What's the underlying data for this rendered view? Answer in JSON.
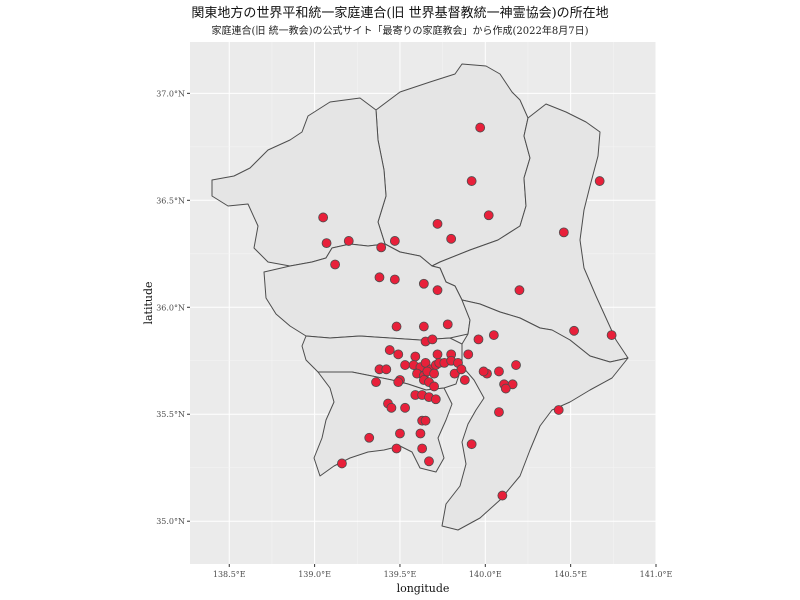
{
  "title": "関東地方の世界平和統一家庭連合(旧 世界基督教統一神霊協会)の所在地",
  "subtitle": "家庭連合(旧 統一教会)の公式サイト「最寄りの家庭教会」から作成(2022年8月7日)",
  "chart_data": {
    "type": "scatter",
    "xlabel": "longitude",
    "ylabel": "latitude",
    "xlim": [
      138.27,
      141.0
    ],
    "ylim": [
      34.8,
      37.24
    ],
    "x_ticks": [
      "138.5°E",
      "139.0°E",
      "139.5°E",
      "140.0°E",
      "140.5°E",
      "141.0°E"
    ],
    "y_ticks": [
      "35.0°N",
      "35.5°N",
      "36.0°N",
      "36.5°N",
      "37.0°N"
    ],
    "x_tick_values": [
      138.5,
      139.0,
      139.5,
      140.0,
      140.5,
      141.0
    ],
    "y_tick_values": [
      35.0,
      35.5,
      36.0,
      36.5,
      37.0
    ],
    "grid": true,
    "point_color": "#e8203a",
    "point_stroke": "#4d4d4d",
    "panel_color": "#ebebeb",
    "land_color": "#e5e5e5",
    "border_color": "#4d4d4d",
    "points": [
      [
        139.97,
        36.84
      ],
      [
        139.92,
        36.59
      ],
      [
        140.67,
        36.59
      ],
      [
        140.02,
        36.43
      ],
      [
        139.72,
        36.39
      ],
      [
        139.05,
        36.42
      ],
      [
        139.8,
        36.32
      ],
      [
        140.46,
        36.35
      ],
      [
        139.07,
        36.3
      ],
      [
        139.2,
        36.31
      ],
      [
        139.39,
        36.28
      ],
      [
        139.47,
        36.31
      ],
      [
        139.12,
        36.2
      ],
      [
        139.38,
        36.14
      ],
      [
        139.47,
        36.13
      ],
      [
        139.64,
        36.11
      ],
      [
        139.72,
        36.08
      ],
      [
        140.2,
        36.08
      ],
      [
        139.48,
        35.91
      ],
      [
        139.64,
        35.91
      ],
      [
        139.78,
        35.92
      ],
      [
        140.05,
        35.87
      ],
      [
        140.52,
        35.89
      ],
      [
        140.74,
        35.87
      ],
      [
        139.65,
        35.84
      ],
      [
        139.69,
        35.85
      ],
      [
        139.96,
        35.85
      ],
      [
        139.44,
        35.8
      ],
      [
        139.49,
        35.78
      ],
      [
        139.59,
        35.77
      ],
      [
        139.72,
        35.78
      ],
      [
        139.8,
        35.78
      ],
      [
        139.9,
        35.78
      ],
      [
        139.53,
        35.73
      ],
      [
        139.58,
        35.73
      ],
      [
        139.62,
        35.72
      ],
      [
        139.65,
        35.74
      ],
      [
        139.68,
        35.71
      ],
      [
        139.71,
        35.73
      ],
      [
        139.73,
        35.74
      ],
      [
        139.76,
        35.74
      ],
      [
        139.8,
        35.75
      ],
      [
        139.84,
        35.74
      ],
      [
        139.38,
        35.71
      ],
      [
        139.42,
        35.71
      ],
      [
        139.6,
        35.69
      ],
      [
        139.64,
        35.68
      ],
      [
        139.66,
        35.7
      ],
      [
        139.7,
        35.69
      ],
      [
        139.82,
        35.69
      ],
      [
        139.86,
        35.71
      ],
      [
        140.01,
        35.69
      ],
      [
        139.99,
        35.7
      ],
      [
        140.08,
        35.7
      ],
      [
        140.18,
        35.73
      ],
      [
        139.36,
        35.65
      ],
      [
        139.5,
        35.66
      ],
      [
        139.64,
        35.66
      ],
      [
        139.67,
        35.65
      ],
      [
        139.7,
        35.63
      ],
      [
        139.88,
        35.66
      ],
      [
        140.11,
        35.64
      ],
      [
        140.16,
        35.64
      ],
      [
        140.12,
        35.62
      ],
      [
        139.49,
        35.65
      ],
      [
        139.59,
        35.59
      ],
      [
        139.63,
        35.59
      ],
      [
        139.67,
        35.58
      ],
      [
        139.71,
        35.57
      ],
      [
        139.43,
        35.55
      ],
      [
        139.45,
        35.53
      ],
      [
        139.53,
        35.53
      ],
      [
        140.08,
        35.51
      ],
      [
        140.43,
        35.52
      ],
      [
        139.63,
        35.47
      ],
      [
        139.65,
        35.47
      ],
      [
        139.5,
        35.41
      ],
      [
        139.62,
        35.41
      ],
      [
        139.32,
        35.39
      ],
      [
        139.92,
        35.36
      ],
      [
        139.48,
        35.34
      ],
      [
        139.63,
        35.34
      ],
      [
        139.67,
        35.28
      ],
      [
        139.16,
        35.27
      ],
      [
        140.1,
        35.12
      ]
    ]
  }
}
